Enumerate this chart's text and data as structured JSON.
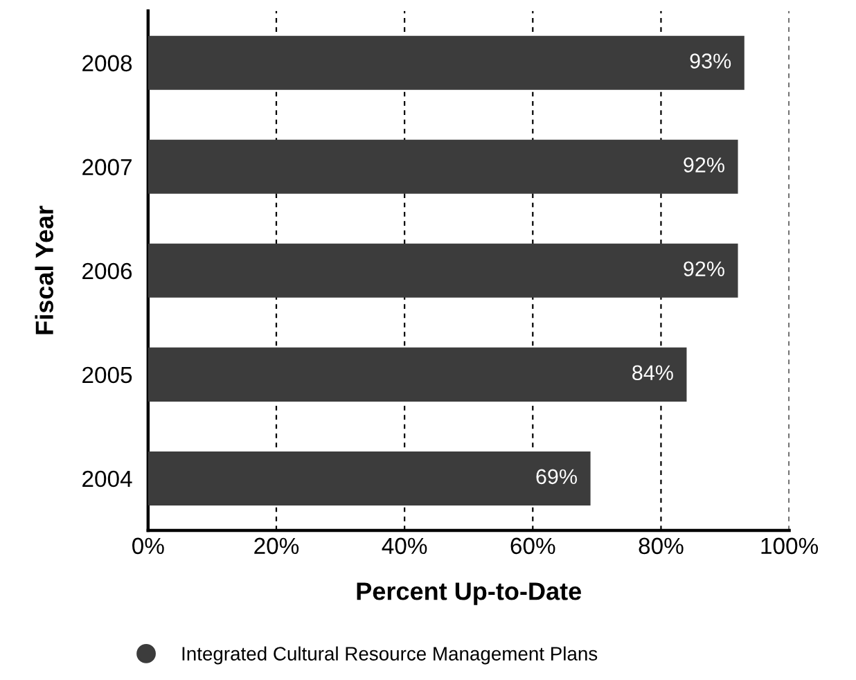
{
  "chart_data": {
    "type": "bar",
    "orientation": "horizontal",
    "xlabel": "Percent Up-to-Date",
    "ylabel": "Fiscal Year",
    "categories": [
      "2008",
      "2007",
      "2006",
      "2005",
      "2004"
    ],
    "series": [
      {
        "name": "Integrated Cultural Resource Management Plans",
        "color": "#3c3c3c",
        "values": [
          93,
          92,
          92,
          84,
          69
        ],
        "value_labels": [
          "93%",
          "92%",
          "92%",
          "84%",
          "69%"
        ]
      }
    ],
    "xlim": [
      0,
      100
    ],
    "xticks": [
      {
        "value": 0,
        "label": "0%"
      },
      {
        "value": 20,
        "label": "20%"
      },
      {
        "value": 40,
        "label": "40%"
      },
      {
        "value": 60,
        "label": "60%"
      },
      {
        "value": 80,
        "label": "80%"
      },
      {
        "value": 100,
        "label": "100%"
      }
    ],
    "grid": "x",
    "legend": "bottom",
    "line_style": "dashed"
  }
}
